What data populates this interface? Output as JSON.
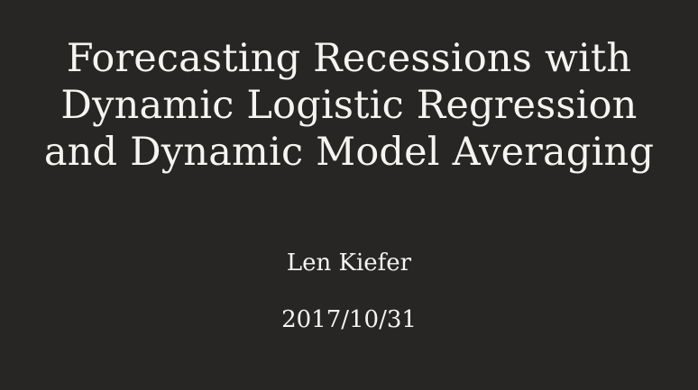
{
  "slide": {
    "title": "Forecasting Recessions with Dynamic Logistic Regression and Dynamic Model Averaging",
    "author": "Len Kiefer",
    "date": "2017/10/31"
  },
  "colors": {
    "background": "#272624",
    "text": "#f5f4f1"
  }
}
